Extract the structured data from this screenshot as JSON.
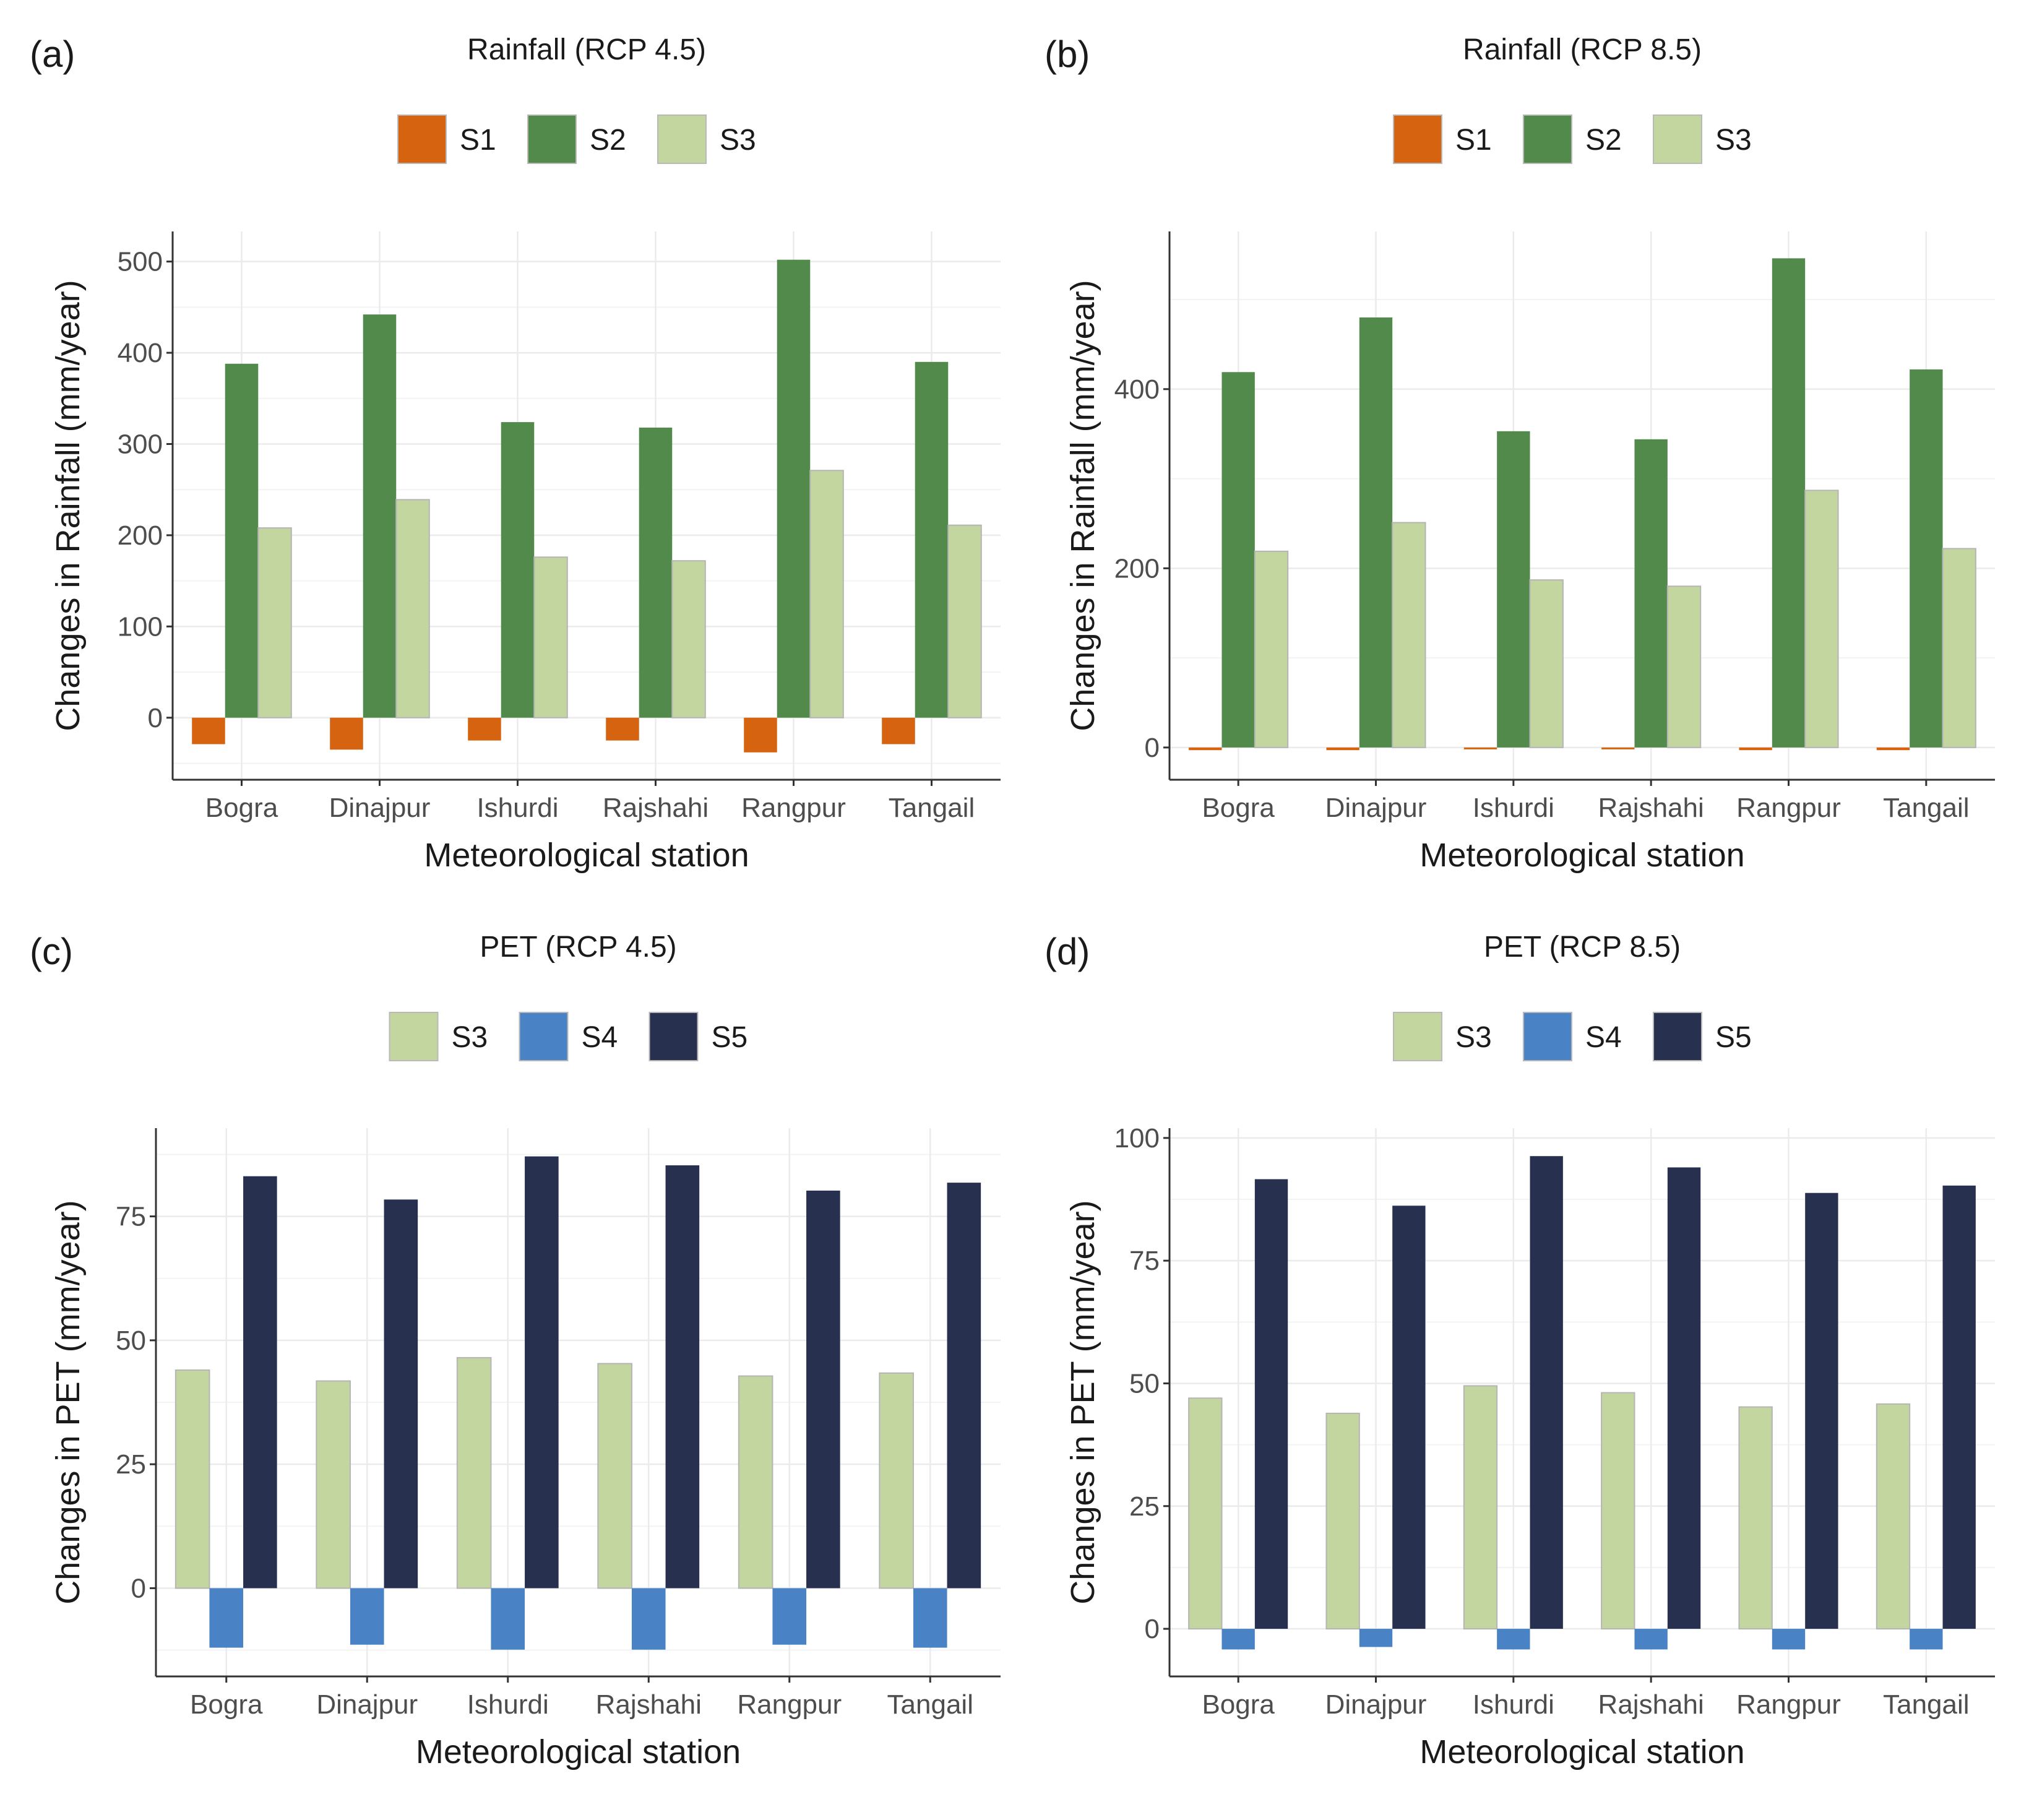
{
  "colors": {
    "S1": "#d5630f",
    "S2": "#528a4c",
    "S3": "#c3d6a0",
    "S4": "#4a82c6",
    "S5": "#27314f"
  },
  "chart_data": [
    {
      "panel_label": "(a)",
      "type": "bar",
      "title": "Rainfall (RCP 4.5)",
      "xlabel": "Meteorological station",
      "ylabel": "Changes in Rainfall (mm/year)",
      "categories": [
        "Bogra",
        "Dinajpur",
        "Ishurdi",
        "Rajshahi",
        "Rangpur",
        "Tangail"
      ],
      "ylim": [
        -68,
        533
      ],
      "yticks": [
        0,
        100,
        200,
        300,
        400,
        500
      ],
      "grid": true,
      "legend": "top",
      "series": [
        {
          "name": "S1",
          "values": [
            -29,
            -35,
            -25,
            -25,
            -38,
            -29
          ]
        },
        {
          "name": "S2",
          "values": [
            388,
            442,
            324,
            318,
            502,
            390
          ]
        },
        {
          "name": "S3",
          "values": [
            208,
            239,
            176,
            172,
            271,
            211
          ]
        }
      ]
    },
    {
      "panel_label": "(b)",
      "type": "bar",
      "title": "Rainfall (RCP 8.5)",
      "xlabel": "Meteorological station",
      "ylabel": "Changes in Rainfall (mm/year)",
      "categories": [
        "Bogra",
        "Dinajpur",
        "Ishurdi",
        "Rajshahi",
        "Rangpur",
        "Tangail"
      ],
      "ylim": [
        -36,
        576
      ],
      "yticks": [
        0,
        200,
        400
      ],
      "grid": true,
      "legend": "top",
      "series": [
        {
          "name": "S1",
          "values": [
            -3,
            -3,
            -1,
            -1,
            -3,
            -3
          ]
        },
        {
          "name": "S2",
          "values": [
            419,
            480,
            353,
            344,
            546,
            422
          ]
        },
        {
          "name": "S3",
          "values": [
            219,
            251,
            187,
            180,
            287,
            222
          ]
        }
      ]
    },
    {
      "panel_label": "(c)",
      "type": "bar",
      "title": "PET (RCP 4.5)",
      "xlabel": "Meteorological station",
      "ylabel": "Changes in PET (mm/year)",
      "categories": [
        "Bogra",
        "Dinajpur",
        "Ishurdi",
        "Rajshahi",
        "Rangpur",
        "Tangail"
      ],
      "ylim": [
        -17.8,
        92.8
      ],
      "yticks": [
        0,
        25,
        50,
        75
      ],
      "grid": true,
      "legend": "top",
      "series": [
        {
          "name": "S3",
          "values": [
            44.0,
            41.8,
            46.5,
            45.3,
            42.8,
            43.4
          ]
        },
        {
          "name": "S4",
          "values": [
            -12.0,
            -11.4,
            -12.4,
            -12.4,
            -11.4,
            -12.0
          ]
        },
        {
          "name": "S5",
          "values": [
            83.1,
            78.4,
            87.1,
            85.3,
            80.2,
            81.8
          ]
        }
      ]
    },
    {
      "panel_label": "(d)",
      "type": "bar",
      "title": "PET (RCP 8.5)",
      "xlabel": "Meteorological station",
      "ylabel": "Changes in PET (mm/year)",
      "categories": [
        "Bogra",
        "Dinajpur",
        "Ishurdi",
        "Rajshahi",
        "Rangpur",
        "Tangail"
      ],
      "ylim": [
        -9.7,
        102
      ],
      "yticks": [
        0,
        25,
        50,
        75,
        100
      ],
      "grid": true,
      "legend": "top",
      "series": [
        {
          "name": "S3",
          "values": [
            47.0,
            43.9,
            49.5,
            48.1,
            45.2,
            45.8
          ]
        },
        {
          "name": "S4",
          "values": [
            -4.2,
            -3.7,
            -4.2,
            -4.2,
            -4.2,
            -4.2
          ]
        },
        {
          "name": "S5",
          "values": [
            91.6,
            86.2,
            96.3,
            94.0,
            88.8,
            90.3
          ]
        }
      ]
    }
  ]
}
